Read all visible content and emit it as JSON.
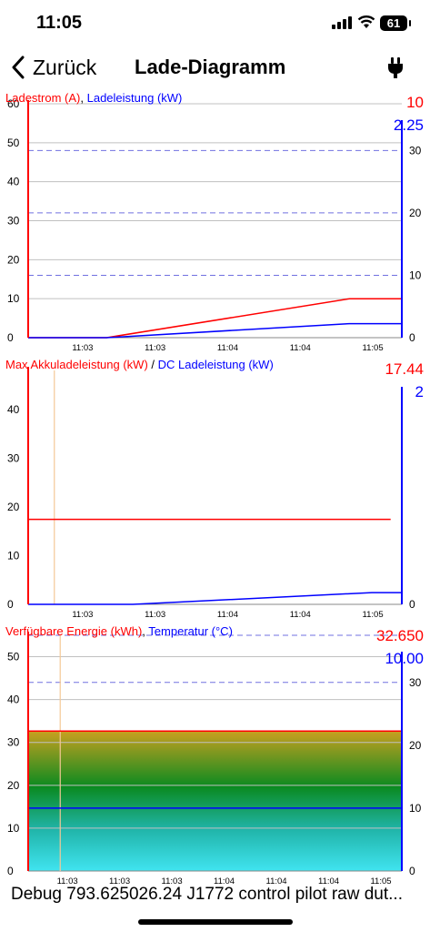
{
  "status": {
    "time": "11:05",
    "battery": "61"
  },
  "nav": {
    "back_label": "Zurück",
    "title": "Lade-Diagramm",
    "right_icon": "plug-icon"
  },
  "colors": {
    "left": "#ff0000",
    "right": "#0000ff",
    "grid": "#c0c0c0",
    "dash": "#7070e0"
  },
  "chart_data": [
    {
      "type": "line",
      "left_label": "Ladestrom (A)",
      "separator": ", ",
      "right_label": "Ladeleistung (kW)",
      "left_current": "10",
      "right_current": "2.25",
      "left_ticks": [
        "60",
        "50",
        "40",
        "30",
        "20",
        "10",
        "0"
      ],
      "left_ylim": [
        0,
        60
      ],
      "right_ticks": [
        "30",
        "20",
        "10",
        "0"
      ],
      "right_ylim": [
        0,
        37.5
      ],
      "x_ticks": [
        "11:03",
        "11:03",
        "11:04",
        "11:04",
        "11:05"
      ],
      "x_range": [
        0,
        5
      ],
      "series": [
        {
          "axis": "left",
          "x": [
            0,
            1.05,
            4.3,
            5.0
          ],
          "y": [
            0,
            0,
            10,
            10
          ]
        },
        {
          "axis": "right",
          "x": [
            0,
            1.05,
            4.3,
            5.0
          ],
          "y": [
            0,
            0,
            2.25,
            2.25
          ]
        }
      ],
      "dashed_right": [
        40,
        30,
        20,
        10
      ],
      "cursor": null
    },
    {
      "type": "line",
      "left_label": "Max Akkuladeleistung (kW)",
      "separator": " / ",
      "right_label": "DC Ladeleistung (kW)",
      "left_current": "17.44",
      "right_current": "2",
      "left_ticks": [
        "40",
        "30",
        "20",
        "10",
        "0"
      ],
      "left_ylim": [
        0,
        48
      ],
      "right_ticks": [
        "0"
      ],
      "right_ylim": [
        0,
        40
      ],
      "x_ticks": [
        "11:03",
        "11:03",
        "11:04",
        "11:04",
        "11:05"
      ],
      "x_range": [
        0,
        5
      ],
      "series": [
        {
          "axis": "left",
          "x": [
            0,
            4.85
          ],
          "y": [
            17.44,
            17.44
          ]
        },
        {
          "axis": "right",
          "x": [
            0,
            1.4,
            4.6,
            5.0
          ],
          "y": [
            0,
            0,
            2,
            2
          ]
        }
      ],
      "dashed_right": [],
      "cursor": 0.35
    },
    {
      "type": "area",
      "left_label": "Verfügbare Energie (kWh)",
      "separator": ", ",
      "right_label": "Temperatur (°C)",
      "left_current": "32.650",
      "right_current": "10.00",
      "left_ticks": [
        "50",
        "40",
        "30",
        "20",
        "10",
        "0"
      ],
      "left_ylim": [
        0,
        55
      ],
      "right_ticks": [
        "30",
        "20",
        "10",
        "0"
      ],
      "right_ylim": [
        0,
        37.5
      ],
      "x_ticks": [
        "11:03",
        "11:03",
        "11:03",
        "11:04",
        "11:04",
        "11:04",
        "11:05"
      ],
      "x_range": [
        0,
        7
      ],
      "series": [
        {
          "axis": "left",
          "x": [
            0,
            7
          ],
          "y": [
            32.65,
            32.65
          ]
        },
        {
          "axis": "right",
          "x": [
            0,
            7
          ],
          "y": [
            10,
            10
          ]
        }
      ],
      "dashed_right": [
        37.5,
        30
      ],
      "cursor": 0.6
    }
  ],
  "debug": "Debug 793.625026.24 J1772 control pilot raw dut..."
}
